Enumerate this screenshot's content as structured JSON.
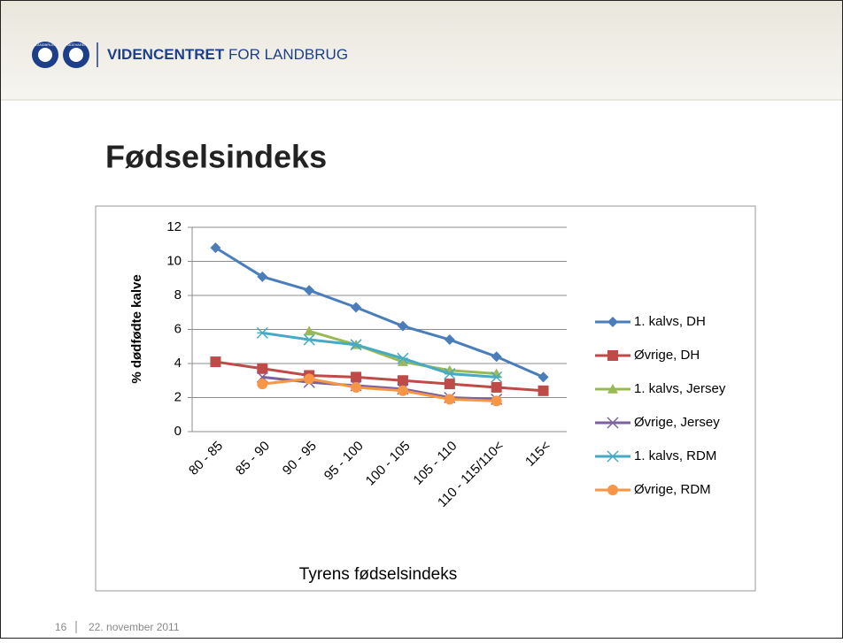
{
  "header": {
    "logo": [
      "LANDBRUG",
      "FØDEVARER"
    ],
    "brand_bold": "VIDENCENTRET",
    "brand_rest": "FOR LANDBRUG"
  },
  "slide": {
    "title": "Fødselsindeks"
  },
  "footer": {
    "page": "16",
    "date": "22. november 2011"
  },
  "chart_data": {
    "type": "line",
    "categories": [
      "80 - 85",
      "85 - 90",
      "90 - 95",
      "95 - 100",
      "100 - 105",
      "105 - 110",
      "110 - 115/110<",
      "115<"
    ],
    "y_label": "% dødfødte kalve",
    "x_label": "Tyrens fødselsindeks",
    "ylim": [
      0,
      12
    ],
    "yticks": [
      0,
      2,
      4,
      6,
      8,
      10,
      12
    ],
    "grid": true,
    "legend": "right",
    "series": [
      {
        "name": "1. kalvs, DH",
        "color": "#4a7ebb",
        "marker": "diamond",
        "values": [
          10.8,
          9.1,
          8.3,
          7.3,
          6.2,
          5.4,
          4.4,
          3.2
        ]
      },
      {
        "name": "Øvrige, DH",
        "color": "#be4b48",
        "marker": "square",
        "values": [
          4.1,
          3.7,
          3.3,
          3.2,
          3.0,
          2.8,
          2.6,
          2.4
        ]
      },
      {
        "name": "1. kalvs, Jersey",
        "color": "#98b954",
        "marker": "triangle",
        "values": [
          null,
          null,
          5.9,
          5.1,
          4.1,
          3.6,
          3.4,
          null
        ]
      },
      {
        "name": "Øvrige, Jersey",
        "color": "#7d60a0",
        "marker": "x",
        "values": [
          null,
          3.2,
          2.9,
          2.7,
          2.5,
          2.0,
          1.9,
          null
        ]
      },
      {
        "name": "1. kalvs, RDM",
        "color": "#46aac5",
        "marker": "star",
        "values": [
          null,
          5.8,
          5.4,
          5.1,
          4.3,
          3.4,
          3.2,
          null
        ]
      },
      {
        "name": "Øvrige, RDM",
        "color": "#f79646",
        "marker": "circle",
        "values": [
          null,
          2.8,
          3.1,
          2.6,
          2.4,
          1.9,
          1.8,
          null
        ]
      }
    ]
  }
}
